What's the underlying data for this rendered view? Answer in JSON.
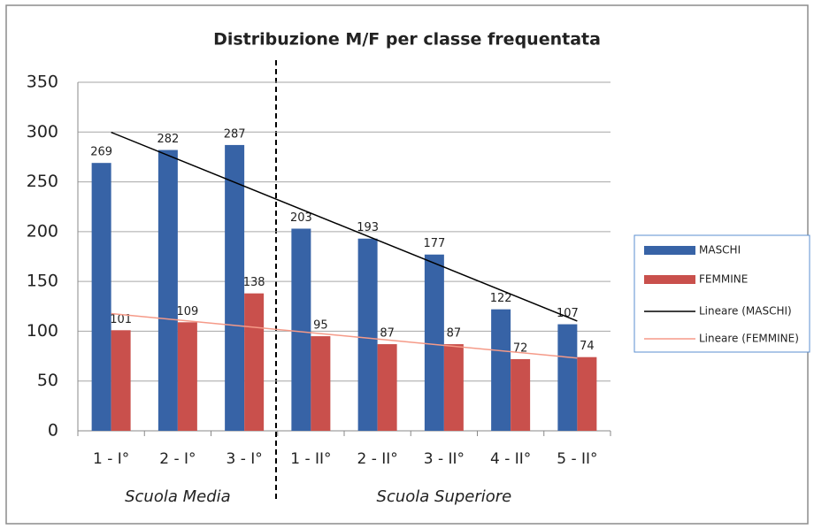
{
  "chart_data": {
    "type": "bar",
    "title": "Distribuzione M/F  per classe frequentata",
    "categories": [
      "1 - I°",
      "2 - I°",
      "3 - I°",
      "1 - II°",
      "2 - II°",
      "3 - II°",
      "4 - II°",
      "5 - II°"
    ],
    "series": [
      {
        "name": "MASCHI",
        "color": "#3763a6",
        "values": [
          269,
          282,
          287,
          203,
          193,
          177,
          122,
          107
        ]
      },
      {
        "name": "FEMMINE",
        "color": "#c9504c",
        "values": [
          101,
          109,
          138,
          95,
          87,
          87,
          72,
          74
        ]
      },
      {
        "name": "Lineare (MASCHI)",
        "color": "#000000",
        "trend_of": "MASCHI"
      },
      {
        "name": "Lineare (FEMMINE)",
        "color": "#f59a88",
        "trend_of": "FEMMINE"
      }
    ],
    "annotations": [
      "Scuola Media",
      "Scuola Superiore"
    ],
    "ylim": [
      0,
      350
    ],
    "yticks": [
      0,
      50,
      100,
      150,
      200,
      250,
      300,
      350
    ],
    "grid": true,
    "legend": "right"
  }
}
